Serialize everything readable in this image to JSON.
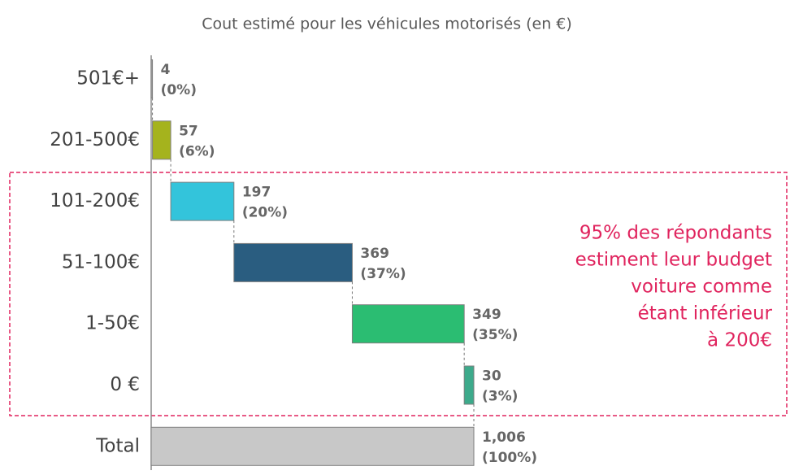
{
  "chart_data": {
    "type": "waterfall",
    "title": "Cout estimé pour les véhicules motorisés (en €)",
    "categories": [
      "501€+",
      "201-500€",
      "101-200€",
      "51-100€",
      "1-50€",
      "0 €",
      "Total"
    ],
    "values": [
      4,
      57,
      197,
      369,
      349,
      30,
      1006
    ],
    "value_labels": [
      "4",
      "57",
      "197",
      "369",
      "349",
      "30",
      "1,006"
    ],
    "share_labels": [
      "(0%)",
      "(6%)",
      "(20%)",
      "(37%)",
      "(35%)",
      "(3%)",
      "(100%)"
    ],
    "colors": [
      "#a6a6a6",
      "#a5b31d",
      "#33c4db",
      "#2a5d80",
      "#2bbd72",
      "#3daa8b",
      "#c8c8c8"
    ],
    "annotation": [
      "95% des répondants",
      "estiment leur budget",
      "voiture comme",
      "étant inférieur",
      "à 200€"
    ]
  }
}
